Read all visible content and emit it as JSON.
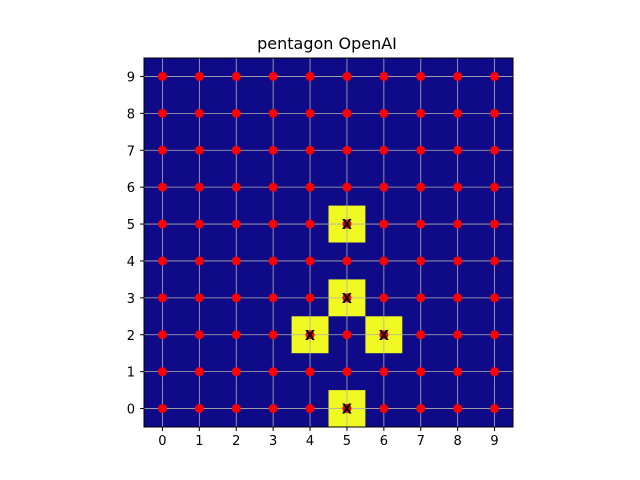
{
  "chart_data": {
    "type": "heatmap",
    "title": "pentagon OpenAI",
    "xlabel": "",
    "ylabel": "",
    "x_ticks": [
      0,
      1,
      2,
      3,
      4,
      5,
      6,
      7,
      8,
      9
    ],
    "y_ticks": [
      0,
      1,
      2,
      3,
      4,
      5,
      6,
      7,
      8,
      9
    ],
    "xlim": [
      -0.5,
      9.5
    ],
    "ylim": [
      -0.5,
      9.5
    ],
    "grid": true,
    "colors": {
      "background_cell": "#0f0a88",
      "highlight_cell": "#f0f921",
      "point": "#ff0000",
      "grid": "#b0b0b0"
    },
    "grid_points": {
      "description": "a red point at every integer (x, y) for x in 0..9 and y in 0..9",
      "x_range": [
        0,
        9
      ],
      "y_range": [
        0,
        9
      ]
    },
    "highlighted_cells": [
      {
        "x": 5,
        "y": 0,
        "label": "X"
      },
      {
        "x": 4,
        "y": 2,
        "label": "X"
      },
      {
        "x": 6,
        "y": 2,
        "label": "X"
      },
      {
        "x": 5,
        "y": 3,
        "label": "X"
      },
      {
        "x": 5,
        "y": 5,
        "label": "X"
      }
    ]
  }
}
